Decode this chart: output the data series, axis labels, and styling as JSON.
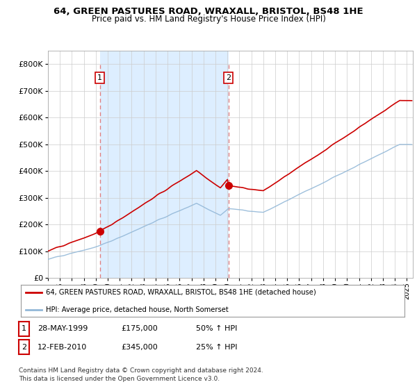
{
  "title": "64, GREEN PASTURES ROAD, WRAXALL, BRISTOL, BS48 1HE",
  "subtitle": "Price paid vs. HM Land Registry's House Price Index (HPI)",
  "background_color": "#ffffff",
  "plot_bg_color": "#ffffff",
  "shade_color": "#ddeeff",
  "grid_color": "#cccccc",
  "hpi_color": "#93b8d8",
  "price_color": "#cc0000",
  "dashed_color": "#e08080",
  "sale1_t": 1999.333,
  "sale1_price": 175000,
  "sale2_t": 2010.083,
  "sale2_price": 345000,
  "ylim": [
    0,
    850000
  ],
  "yticks": [
    0,
    100000,
    200000,
    300000,
    400000,
    500000,
    600000,
    700000,
    800000
  ],
  "xlim_start": 1995.0,
  "xlim_end": 2025.5,
  "legend_house_label": "64, GREEN PASTURES ROAD, WRAXALL, BRISTOL, BS48 1HE (detached house)",
  "legend_hpi_label": "HPI: Average price, detached house, North Somerset",
  "footer_text": "Contains HM Land Registry data © Crown copyright and database right 2024.\nThis data is licensed under the Open Government Licence v3.0.",
  "table_rows": [
    {
      "num": "1",
      "date": "28-MAY-1999",
      "price": "£175,000",
      "change": "50% ↑ HPI"
    },
    {
      "num": "2",
      "date": "12-FEB-2010",
      "price": "£345,000",
      "change": "25% ↑ HPI"
    }
  ]
}
